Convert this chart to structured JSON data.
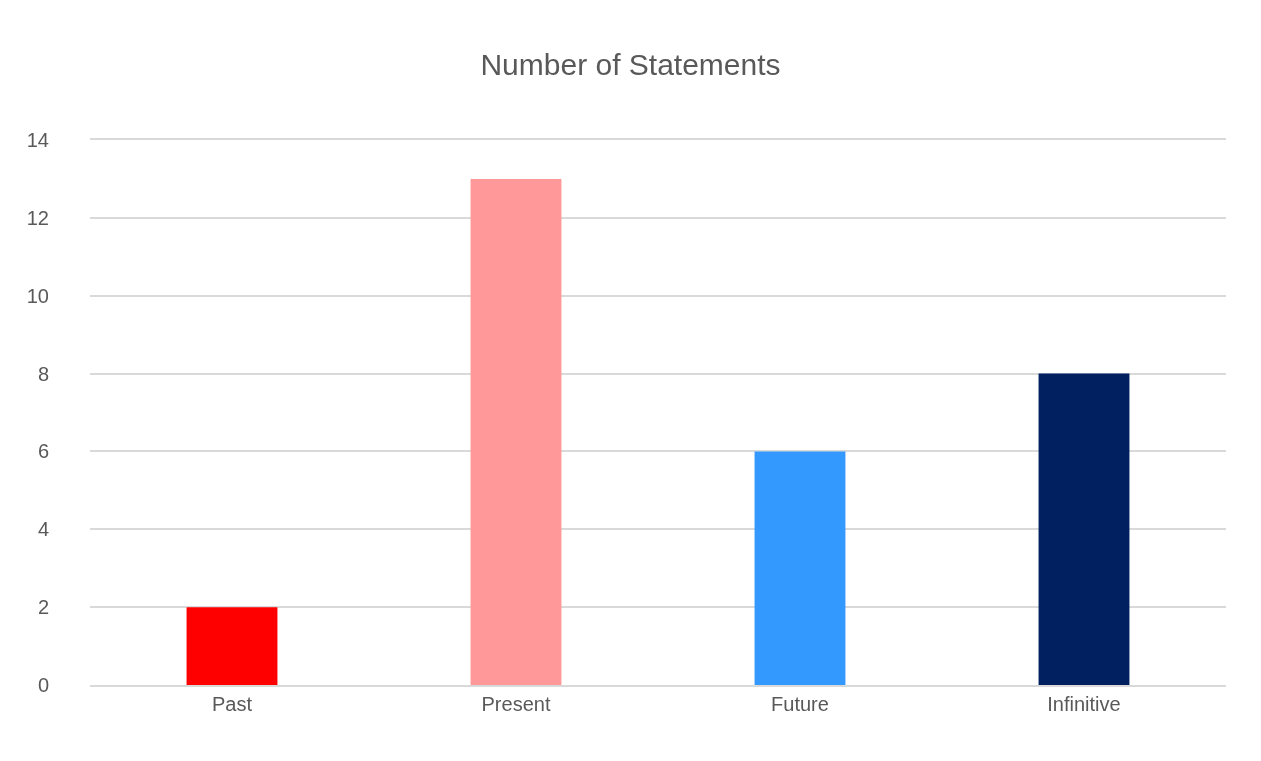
{
  "chart_data": {
    "type": "bar",
    "title": "Number of Statements",
    "categories": [
      "Past",
      "Present",
      "Future",
      "Infinitive"
    ],
    "values": [
      2,
      13,
      6,
      8
    ],
    "colors": [
      "#ff0000",
      "#ff9999",
      "#3399ff",
      "#002060"
    ],
    "ylim": [
      0,
      14
    ],
    "yticks": [
      0,
      2,
      4,
      6,
      8,
      10,
      12,
      14
    ],
    "grid": "y"
  }
}
